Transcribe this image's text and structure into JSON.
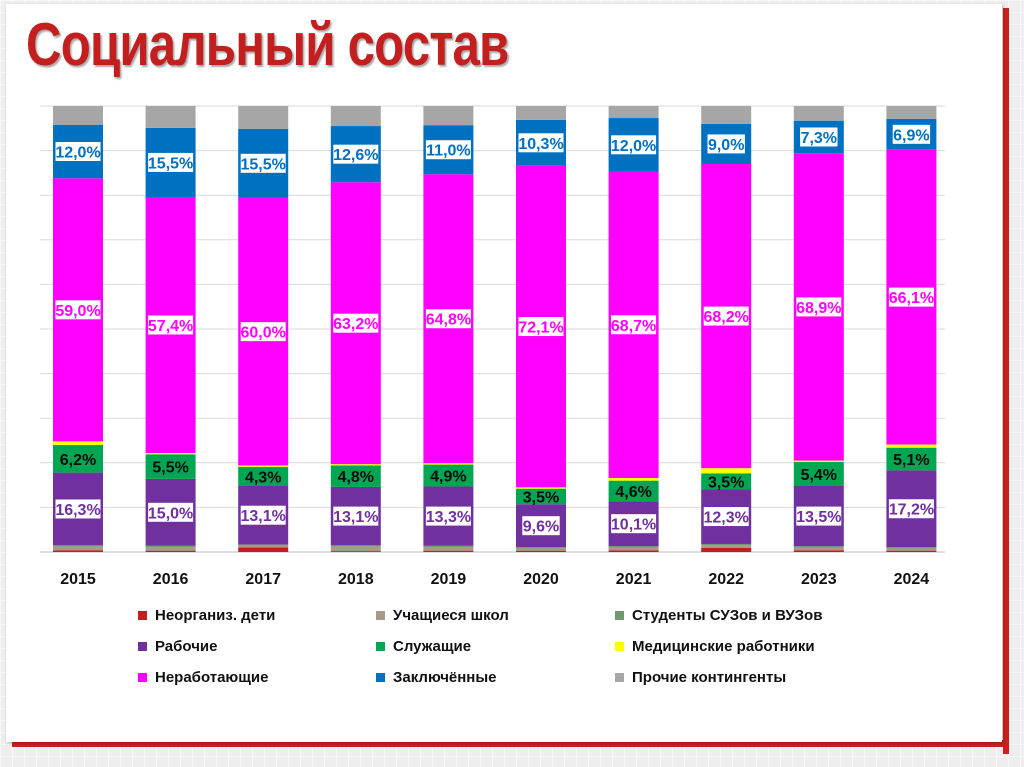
{
  "page": {
    "title": "Социальный состав"
  },
  "colors": {
    "brand_red": "#c31f1f",
    "frame_red": "#c8201f"
  },
  "chart_data": {
    "type": "bar",
    "stacked": true,
    "normalized_percent": true,
    "categories": [
      "2015",
      "2016",
      "2017",
      "2018",
      "2019",
      "2020",
      "2021",
      "2022",
      "2023",
      "2024"
    ],
    "series": [
      {
        "name": "Неорганиз. дети",
        "color": "#c0201f",
        "values": [
          0.4,
          0.3,
          1.0,
          0.2,
          0.3,
          0.3,
          0.4,
          0.9,
          0.4,
          0.3
        ]
      },
      {
        "name": "Учащиеся школ",
        "color": "#a79a87",
        "values": [
          0.8,
          0.8,
          0.4,
          1.0,
          0.8,
          0.5,
          0.6,
          0.6,
          0.6,
          0.5
        ]
      },
      {
        "name": "Студенты СУЗов и ВУЗов",
        "color": "#6f9a6f",
        "values": [
          0.3,
          0.3,
          0.3,
          0.3,
          0.3,
          0.3,
          0.3,
          0.3,
          0.3,
          0.3
        ]
      },
      {
        "name": "Рабочие",
        "color": "#7030a0",
        "values": [
          16.3,
          15.0,
          13.1,
          13.1,
          13.3,
          9.6,
          10.1,
          12.3,
          13.5,
          17.2
        ]
      },
      {
        "name": "Служащие",
        "color": "#00a651",
        "values": [
          6.2,
          5.5,
          4.3,
          4.8,
          4.9,
          3.5,
          4.6,
          3.5,
          5.4,
          5.1
        ]
      },
      {
        "name": "Медицинские работники",
        "color": "#ffff00",
        "values": [
          0.8,
          0.3,
          0.3,
          0.3,
          0.3,
          0.3,
          0.6,
          1.2,
          0.3,
          0.7
        ]
      },
      {
        "name": "Неработающие",
        "color": "#ff00ff",
        "values": [
          59.0,
          57.4,
          60.0,
          63.2,
          64.8,
          72.1,
          68.7,
          68.2,
          68.9,
          66.1
        ]
      },
      {
        "name": "Заключённые",
        "color": "#0070c0",
        "values": [
          12.0,
          15.5,
          15.5,
          12.6,
          11.0,
          10.3,
          12.0,
          9.0,
          7.3,
          6.9
        ]
      },
      {
        "name": "Прочие контингенты",
        "color": "#a6a6a6",
        "values": [
          4.2,
          4.9,
          5.1,
          4.5,
          4.3,
          3.1,
          2.7,
          4.0,
          3.3,
          2.9
        ]
      }
    ],
    "data_labels": {
      "Рабочие": [
        "16,3%",
        "15,0%",
        "13,1%",
        "13,1%",
        "13,3%",
        "9,6%",
        "10,1%",
        "12,3%",
        "13,5%",
        "17,2%"
      ],
      "Служащие": [
        "6,2%",
        "5,5%",
        "4,3%",
        "4,8%",
        "4,9%",
        "3,5%",
        "4,6%",
        "3,5%",
        "5,4%",
        "5,1%"
      ],
      "Неработающие": [
        "59,0%",
        "57,4%",
        "60,0%",
        "63,2%",
        "64,8%",
        "72,1%",
        "68,7%",
        "68,2%",
        "68,9%",
        "66,1%"
      ],
      "Заключённые": [
        "12,0%",
        "15,5%",
        "15,5%",
        "12,6%",
        "11,0%",
        "10,3%",
        "12,0%",
        "9,0%",
        "7,3%",
        "6,9%"
      ]
    },
    "ylim": [
      0,
      100
    ],
    "grid": true,
    "legend_position": "bottom",
    "title": "",
    "xlabel": "",
    "ylabel": ""
  }
}
